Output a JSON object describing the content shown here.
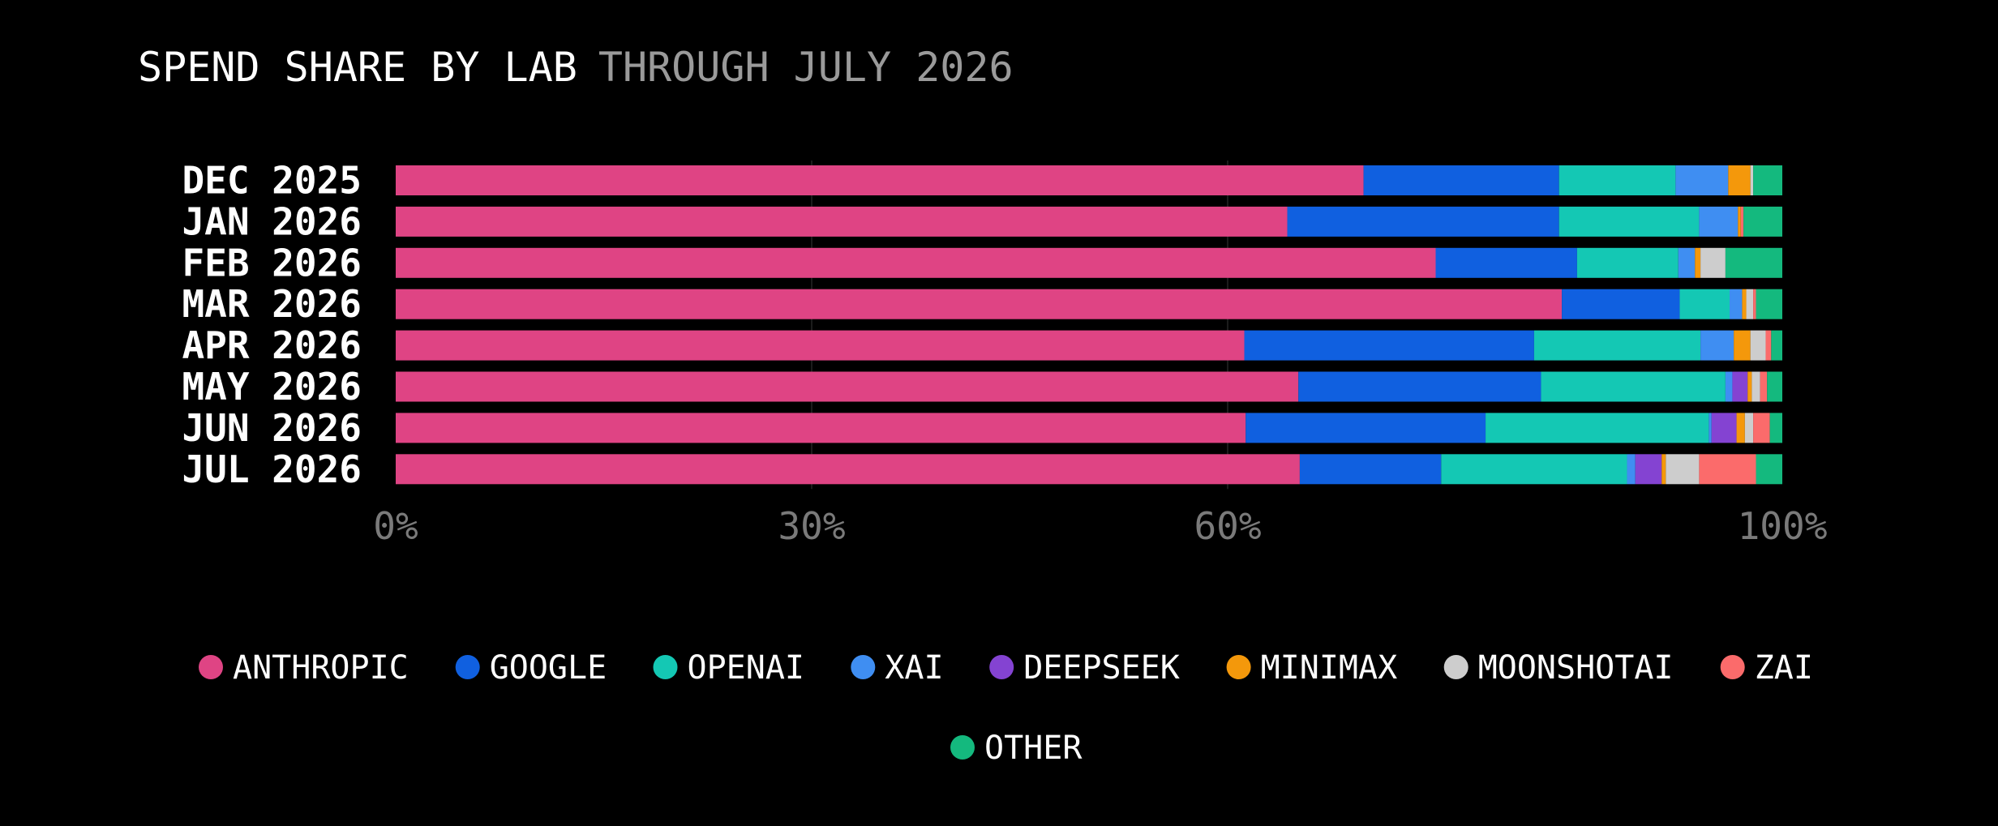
{
  "chart_data": {
    "type": "bar",
    "orientation": "horizontal",
    "stacked": true,
    "normalized": true,
    "title": "SPEND SHARE BY LAB",
    "subtitle": "THROUGH JULY 2026",
    "categories": [
      "DEC 2025",
      "JAN 2026",
      "FEB 2026",
      "MAR 2026",
      "APR 2026",
      "MAY 2026",
      "JUN 2026",
      "JUL 2026"
    ],
    "xlim": [
      0,
      100
    ],
    "x_ticks": [
      0,
      30,
      60,
      100
    ],
    "x_tick_labels": [
      "0%",
      "30%",
      "60%",
      "100%"
    ],
    "grid": true,
    "legend_position": "bottom",
    "series": [
      {
        "name": "ANTHROPIC",
        "color": "#df4484",
        "values": [
          69.8,
          64.3,
          75.0,
          84.1,
          61.2,
          65.1,
          61.3,
          65.2
        ]
      },
      {
        "name": "GOOGLE",
        "color": "#1060e0",
        "values": [
          14.1,
          19.6,
          10.2,
          8.5,
          20.9,
          17.5,
          17.3,
          10.2
        ]
      },
      {
        "name": "OPENAI",
        "color": "#14c8b4",
        "values": [
          8.4,
          10.1,
          7.3,
          3.6,
          12.0,
          13.3,
          16.1,
          13.4
        ]
      },
      {
        "name": "XAI",
        "color": "#3f8ef2",
        "values": [
          3.8,
          2.8,
          1.2,
          0.9,
          2.4,
          0.5,
          0.2,
          0.6
        ]
      },
      {
        "name": "DEEPSEEK",
        "color": "#8443d2",
        "values": [
          0,
          0,
          0,
          0,
          0,
          1.1,
          1.8,
          1.9
        ]
      },
      {
        "name": "MINIMAX",
        "color": "#f4980b",
        "values": [
          1.6,
          0.2,
          0.4,
          0.3,
          1.2,
          0.3,
          0.6,
          0.3
        ]
      },
      {
        "name": "MOONSHOTAI",
        "color": "#cdcdcd",
        "values": [
          0.2,
          0,
          1.8,
          0.5,
          1.1,
          0.6,
          0.6,
          2.4
        ]
      },
      {
        "name": "ZAI",
        "color": "#fb6b6b",
        "values": [
          0,
          0.2,
          0,
          0.2,
          0.4,
          0.5,
          1.2,
          4.1
        ]
      },
      {
        "name": "OTHER",
        "color": "#14b97e",
        "values": [
          2.1,
          2.8,
          4.1,
          1.9,
          0.8,
          1.1,
          0.9,
          1.9
        ]
      }
    ]
  },
  "colors": {
    "background": "#000000",
    "text": "#ffffff",
    "muted_text": "#9a9a9a",
    "tick_text": "#7a7a7a",
    "grid": "#1c1c1c"
  }
}
